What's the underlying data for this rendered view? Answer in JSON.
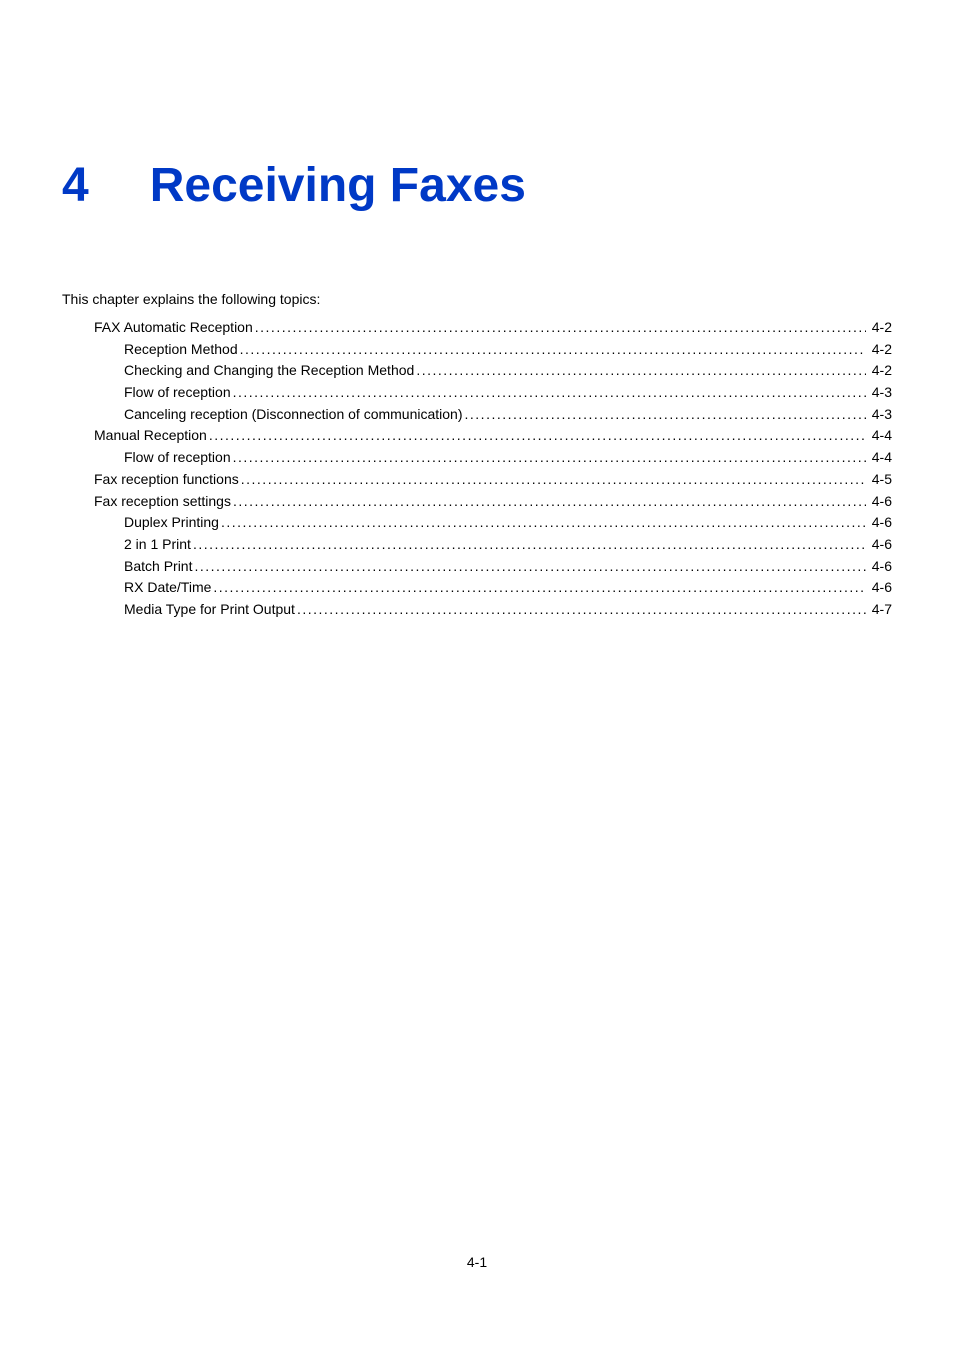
{
  "chapter": {
    "number": "4",
    "title": "Receiving Faxes"
  },
  "intro": "This chapter explains the following topics:",
  "colors": {
    "heading": "#0039c6",
    "text": "#000000",
    "background": "#ffffff"
  },
  "typography": {
    "heading_fontsize": 48,
    "heading_weight": 900,
    "body_fontsize": 14,
    "font_family": "Arial"
  },
  "toc": [
    {
      "level": 1,
      "label": "FAX Automatic Reception",
      "page": "4-2"
    },
    {
      "level": 2,
      "label": "Reception Method",
      "page": "4-2"
    },
    {
      "level": 2,
      "label": "Checking and Changing the Reception Method",
      "page": "4-2"
    },
    {
      "level": 2,
      "label": "Flow of reception",
      "page": "4-3"
    },
    {
      "level": 2,
      "label": "Canceling reception (Disconnection of communication)",
      "page": "4-3"
    },
    {
      "level": 1,
      "label": "Manual Reception",
      "page": "4-4"
    },
    {
      "level": 2,
      "label": "Flow of reception",
      "page": "4-4"
    },
    {
      "level": 1,
      "label": "Fax reception functions",
      "page": "4-5"
    },
    {
      "level": 1,
      "label": "Fax reception settings",
      "page": "4-6"
    },
    {
      "level": 2,
      "label": "Duplex Printing",
      "page": "4-6"
    },
    {
      "level": 2,
      "label": "2 in 1 Print",
      "page": "4-6"
    },
    {
      "level": 2,
      "label": "Batch Print",
      "page": "4-6"
    },
    {
      "level": 2,
      "label": "RX Date/Time",
      "page": "4-6"
    },
    {
      "level": 2,
      "label": "Media Type for Print Output",
      "page": "4-7"
    }
  ],
  "page_number": "4-1"
}
